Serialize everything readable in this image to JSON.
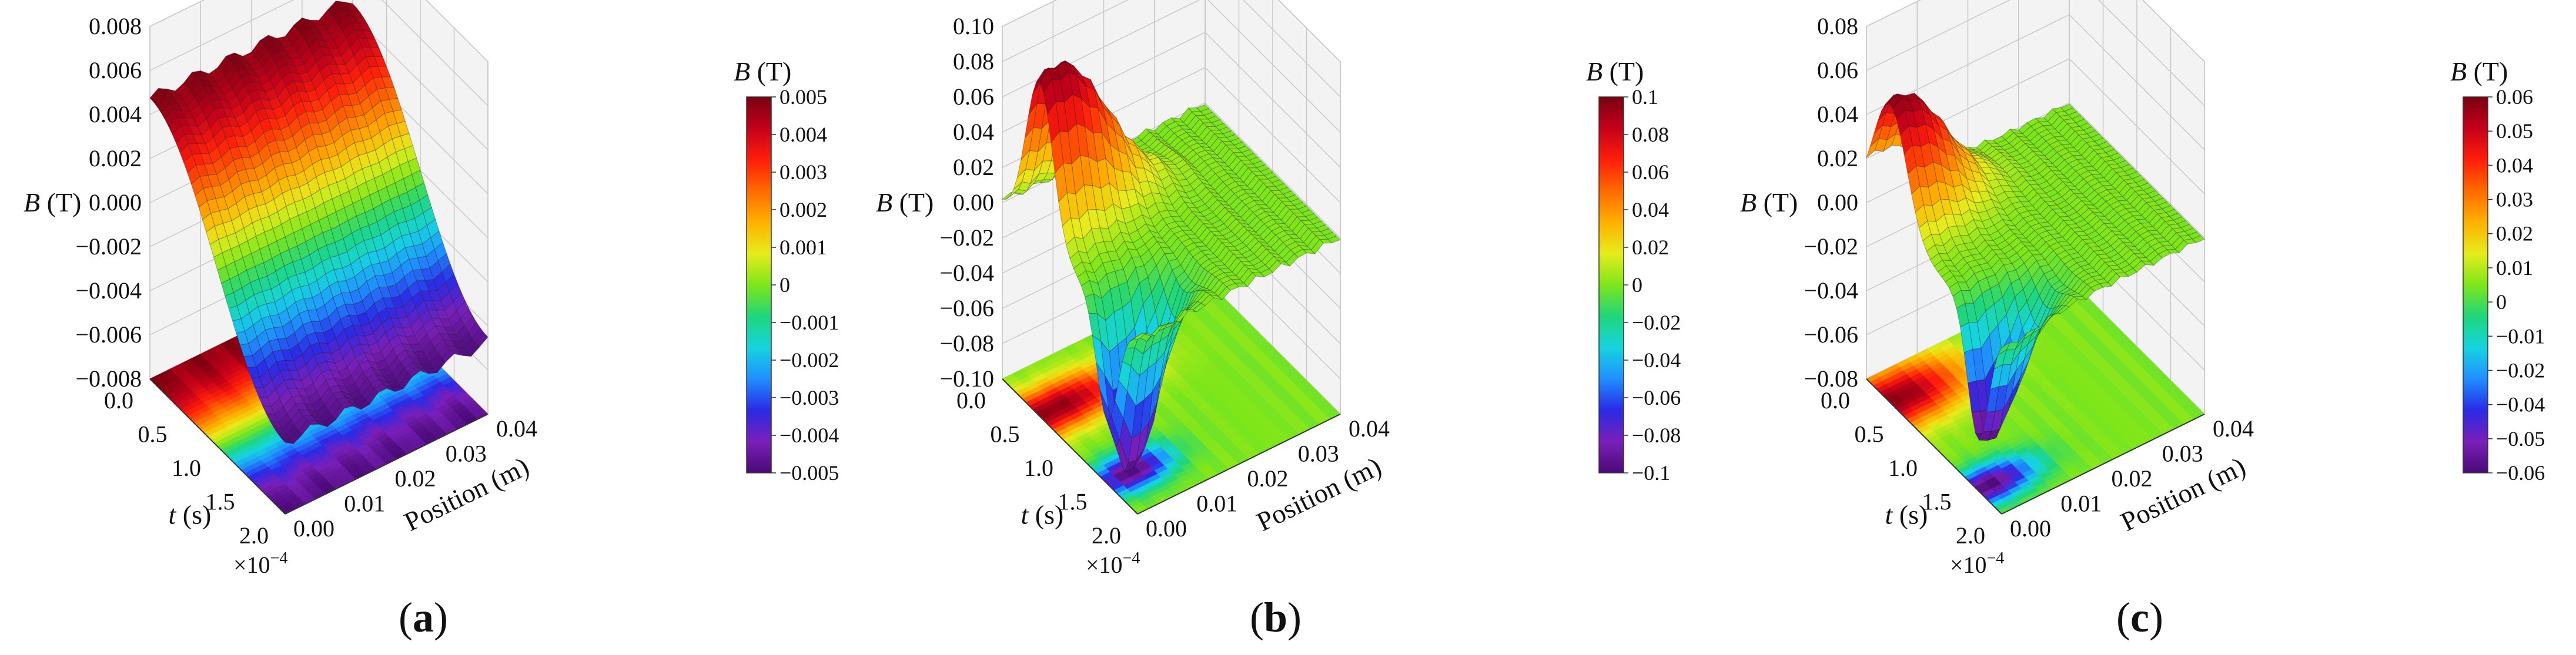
{
  "chart_data": [
    {
      "type": "surface",
      "caption": "(a)",
      "zlabel": "B (T)",
      "zlabel_italic": "B",
      "zlabel_unit": " (T)",
      "zticks": [
        "0.008",
        "0.006",
        "0.004",
        "0.002",
        "0.000",
        "−0.002",
        "−0.004",
        "−0.006",
        "−0.008"
      ],
      "zlim": [
        -0.008,
        0.008
      ],
      "t_label": "t (s)",
      "t_italic": "t",
      "t_unit": " (s)",
      "t_ticks": [
        "0.0",
        "0.5",
        "1.0",
        "1.5",
        "2.0"
      ],
      "t_multiplier": "×10−4",
      "t_lim": [
        0.0,
        2.0
      ],
      "pos_label": "Position (m)",
      "pos_ticks": [
        "0.00",
        "0.01",
        "0.02",
        "0.03",
        "0.04"
      ],
      "pos_lim": [
        0.0,
        0.04
      ],
      "colorbar_label": "B (T)",
      "colorbar_ticks": [
        "0.005",
        "0.004",
        "0.003",
        "0.002",
        "0.001",
        "0",
        "−0.001",
        "−0.002",
        "−0.003",
        "−0.004",
        "−0.005"
      ],
      "colorbar_lim": [
        -0.005,
        0.005
      ],
      "peak_b": 0.005,
      "trough_b": -0.005
    },
    {
      "type": "surface",
      "caption": "(b)",
      "zlabel": "B (T)",
      "zlabel_italic": "B",
      "zlabel_unit": " (T)",
      "zticks": [
        "0.10",
        "0.08",
        "0.06",
        "0.04",
        "0.02",
        "0.00",
        "−0.02",
        "−0.04",
        "−0.06",
        "−0.08",
        "−0.10"
      ],
      "zlim": [
        -0.1,
        0.1
      ],
      "t_label": "t (s)",
      "t_italic": "t",
      "t_unit": " (s)",
      "t_ticks": [
        "0.0",
        "0.5",
        "1.0",
        "1.5",
        "2.0"
      ],
      "t_multiplier": "×10−4",
      "t_lim": [
        0.0,
        2.0
      ],
      "pos_label": "Position (m)",
      "pos_ticks": [
        "0.00",
        "0.01",
        "0.02",
        "0.03",
        "0.04"
      ],
      "pos_lim": [
        0.0,
        0.04
      ],
      "colorbar_label": "B (T)",
      "colorbar_ticks": [
        "0.1",
        "0.08",
        "0.06",
        "0.04",
        "0.02",
        "0",
        "−0.02",
        "−0.04",
        "−0.06",
        "−0.08",
        "−0.1"
      ],
      "colorbar_lim": [
        -0.1,
        0.1
      ],
      "peak_b": 0.1,
      "trough_b": -0.1
    },
    {
      "type": "surface",
      "caption": "(c)",
      "zlabel": "B (T)",
      "zlabel_italic": "B",
      "zlabel_unit": " (T)",
      "zticks": [
        "0.08",
        "0.06",
        "0.04",
        "0.02",
        "0.00",
        "−0.02",
        "−0.04",
        "−0.06",
        "−0.08"
      ],
      "zlim": [
        -0.08,
        0.08
      ],
      "t_label": "t (s)",
      "t_italic": "t",
      "t_unit": " (s)",
      "t_ticks": [
        "0.0",
        "0.5",
        "1.0",
        "1.5",
        "2.0"
      ],
      "t_multiplier": "×10−4",
      "t_lim": [
        0.0,
        2.0
      ],
      "pos_label": "Position (m)",
      "pos_ticks": [
        "0.00",
        "0.01",
        "0.02",
        "0.03",
        "0.04"
      ],
      "pos_lim": [
        0.0,
        0.04
      ],
      "colorbar_label": "B (T)",
      "colorbar_ticks": [
        "0.06",
        "0.05",
        "0.04",
        "0.03",
        "0.02",
        "0.01",
        "0",
        "−0.01",
        "−0.02",
        "−0.04",
        "−0.05",
        "−0.06"
      ],
      "colorbar_lim": [
        -0.06,
        0.06
      ],
      "peak_b": 0.06,
      "trough_b": -0.06
    }
  ],
  "colors": {
    "colormap": [
      "#4b0a78",
      "#7a1fb8",
      "#2a2ae6",
      "#1f8fff",
      "#16d4e0",
      "#1fd67a",
      "#7ee61a",
      "#e6ec1c",
      "#ffb000",
      "#ff6a00",
      "#ff1e0a",
      "#c4001a",
      "#7a0010"
    ],
    "pane": "#f3f3f3",
    "grid": "#c8c8c8",
    "axis": "#333333"
  }
}
